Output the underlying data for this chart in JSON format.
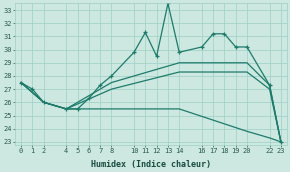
{
  "xlabel": "Humidex (Indice chaleur)",
  "bg_color": "#cce8e0",
  "grid_color": "#9ecfc5",
  "line_color": "#1e7b6a",
  "xlim": [
    -0.5,
    23.5
  ],
  "ylim": [
    22.8,
    33.5
  ],
  "xticks": [
    0,
    1,
    2,
    4,
    5,
    6,
    7,
    8,
    10,
    11,
    12,
    13,
    14,
    16,
    17,
    18,
    19,
    20,
    22,
    23
  ],
  "yticks": [
    23,
    24,
    25,
    26,
    27,
    28,
    29,
    30,
    31,
    32,
    33
  ],
  "line_main_x": [
    0,
    1,
    2,
    4,
    5,
    6,
    7,
    8,
    10,
    11,
    12,
    13,
    14,
    16,
    17,
    18,
    19,
    20,
    22,
    23
  ],
  "line_main_y": [
    27.5,
    27.0,
    26.0,
    25.5,
    25.5,
    26.3,
    27.3,
    28.0,
    29.8,
    31.3,
    29.5,
    33.5,
    29.8,
    30.2,
    31.2,
    31.2,
    30.2,
    30.2,
    27.3,
    23.0
  ],
  "line_upper_x": [
    0,
    2,
    4,
    8,
    14,
    20,
    22,
    23
  ],
  "line_upper_y": [
    27.5,
    26.0,
    25.5,
    27.5,
    29.0,
    29.0,
    27.3,
    23.0
  ],
  "line_mid_x": [
    0,
    2,
    4,
    8,
    14,
    20,
    22,
    23
  ],
  "line_mid_y": [
    27.5,
    26.0,
    25.5,
    27.0,
    28.3,
    28.3,
    27.0,
    23.0
  ],
  "line_lower_x": [
    0,
    2,
    4,
    8,
    14,
    20,
    22,
    23
  ],
  "line_lower_y": [
    27.5,
    26.0,
    25.5,
    25.5,
    25.5,
    23.8,
    23.3,
    23.0
  ]
}
